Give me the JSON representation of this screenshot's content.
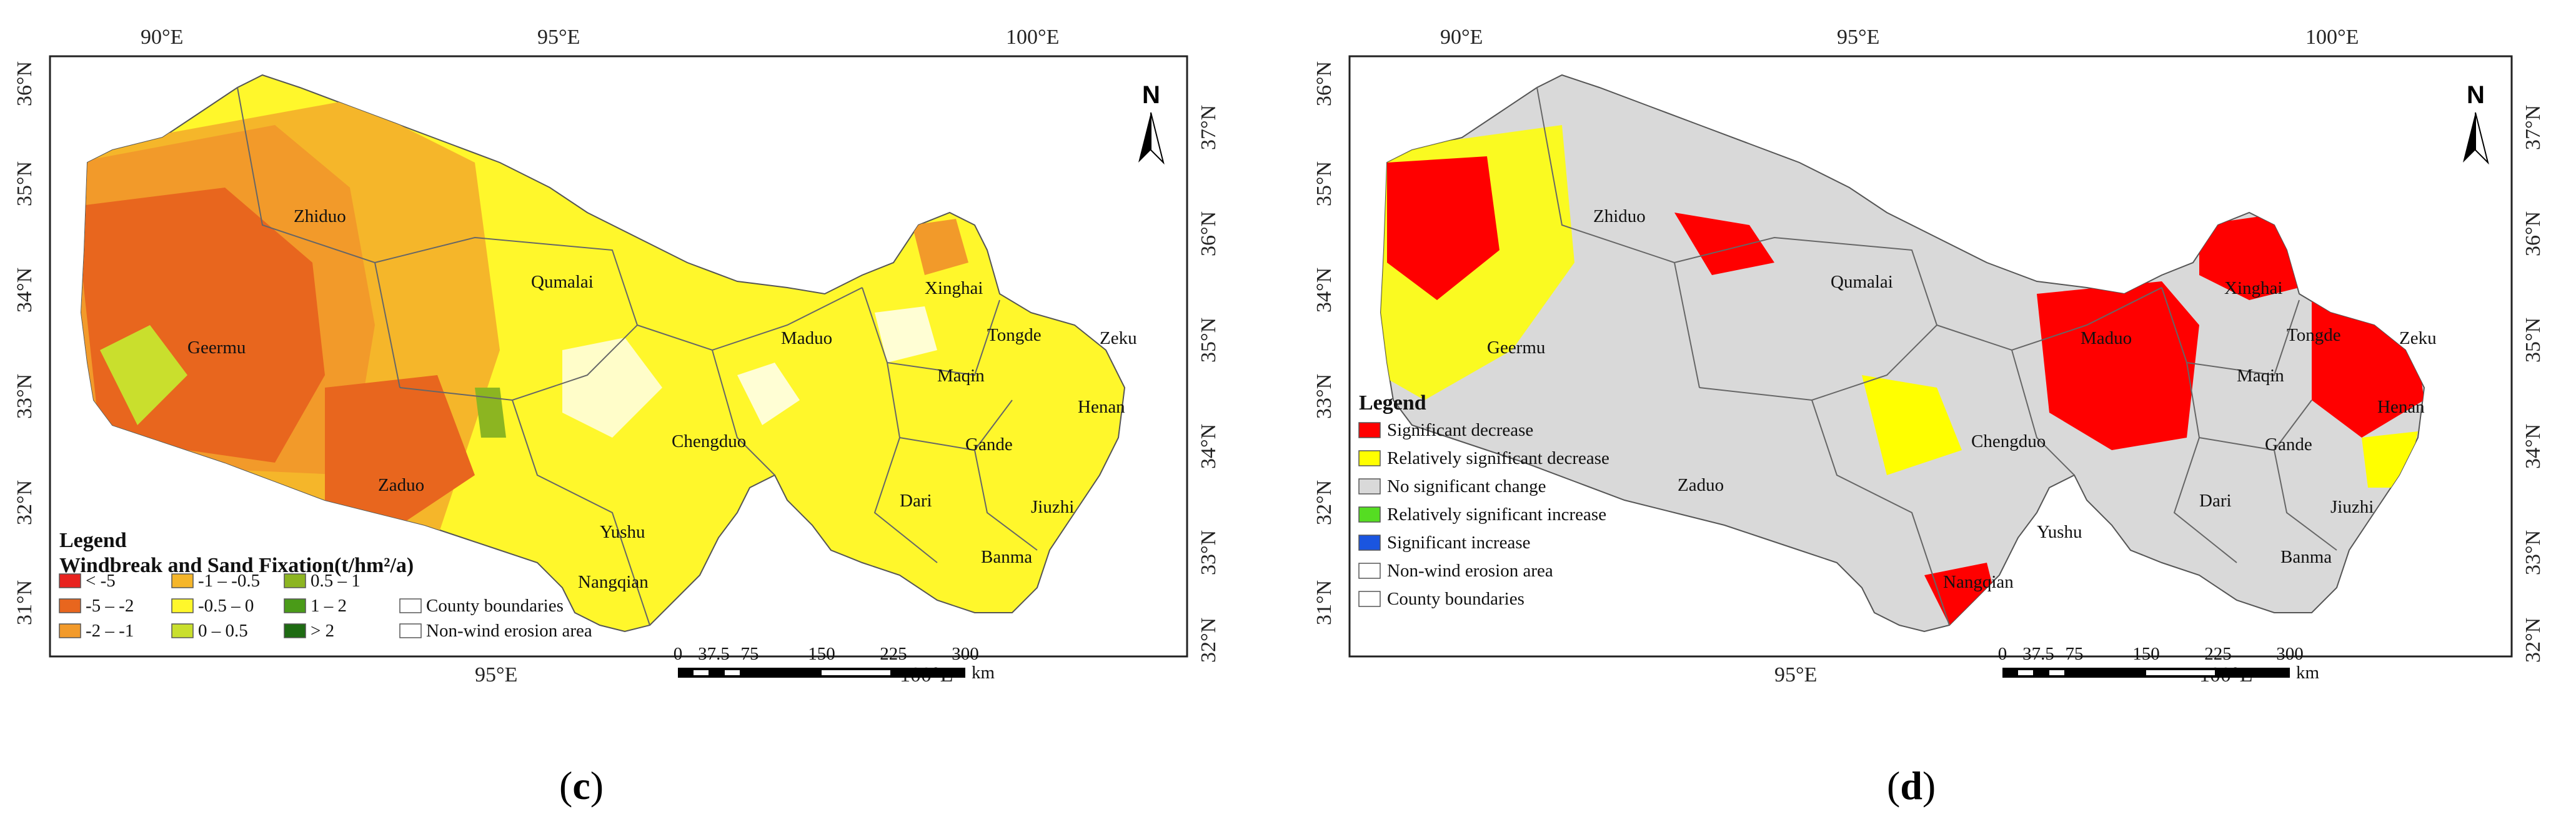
{
  "panel_c": {
    "caption_open": "(",
    "caption_letter": "c",
    "caption_close": ")",
    "top_lon": [
      "90°E",
      "95°E",
      "100°E"
    ],
    "bottom_lon": [
      "95°E",
      "100°E"
    ],
    "left_lat": [
      "36°N",
      "35°N",
      "34°N",
      "33°N",
      "32°N",
      "31°N"
    ],
    "right_lat": [
      "37°N",
      "36°N",
      "35°N",
      "34°N",
      "33°N",
      "32°N"
    ],
    "north_label": "N",
    "counties": [
      "Zhiduo",
      "Qumalai",
      "Geermu",
      "Maduo",
      "Xinghai",
      "Tongde",
      "Zeku",
      "Maqin",
      "Henan",
      "Chengduo",
      "Gande",
      "Zaduo",
      "Dari",
      "Jiuzhi",
      "Yushu",
      "Banma",
      "Nangqian"
    ],
    "legend": {
      "title": "Legend",
      "subtitle": "Windbreak and Sand Fixation(t/hm²/a)",
      "items": [
        {
          "label": "< -5",
          "color": "#e8231f"
        },
        {
          "label": "-1 – -0.5",
          "color": "#f5b62a"
        },
        {
          "label": "0.5 – 1",
          "color": "#8cb521"
        },
        {
          "label": "-5 – -2",
          "color": "#e8661e"
        },
        {
          "label": "-0.5 – 0",
          "color": "#fff72b"
        },
        {
          "label": "1 – 2",
          "color": "#4a9b18"
        },
        {
          "label": "-2 – -1",
          "color": "#f29a2a"
        },
        {
          "label": "0 – 0.5",
          "color": "#c9df2d"
        },
        {
          "label": "> 2",
          "color": "#1e6b12"
        },
        {
          "label": "County boundaries",
          "color": "#ffffff"
        },
        {
          "label": "Non-wind erosion area",
          "color": "#ffffff"
        }
      ]
    },
    "scale": {
      "ticks": [
        "0",
        "37.5",
        "75",
        "150",
        "225",
        "300"
      ],
      "unit": "km"
    }
  },
  "panel_d": {
    "caption_open": "(",
    "caption_letter": "d",
    "caption_close": ")",
    "top_lon": [
      "90°E",
      "95°E",
      "100°E"
    ],
    "bottom_lon": [
      "95°E",
      "100°E"
    ],
    "left_lat": [
      "36°N",
      "35°N",
      "34°N",
      "33°N",
      "32°N",
      "31°N"
    ],
    "right_lat": [
      "37°N",
      "36°N",
      "35°N",
      "34°N",
      "33°N",
      "32°N"
    ],
    "north_label": "N",
    "counties": [
      "Zhiduo",
      "Qumalai",
      "Geermu",
      "Maduo",
      "Xinghai",
      "Tongde",
      "Zeku",
      "Maqin",
      "Henan",
      "Chengduo",
      "Gande",
      "Zaduo",
      "Dari",
      "Jiuzhi",
      "Yushu",
      "Banma",
      "Nangqian"
    ],
    "legend": {
      "title": "Legend",
      "items": [
        {
          "label": "Significant decrease",
          "color": "#ff0000"
        },
        {
          "label": "Relatively significant decrease",
          "color": "#ffff00"
        },
        {
          "label": "No significant change",
          "color": "#d9d9d9"
        },
        {
          "label": "Relatively significant increase",
          "color": "#55dd22"
        },
        {
          "label": "Significant increase",
          "color": "#1a55e0"
        },
        {
          "label": "Non-wind erosion area",
          "color": "#ffffff"
        },
        {
          "label": "County boundaries",
          "color": "#ffffff"
        }
      ]
    },
    "scale": {
      "ticks": [
        "0",
        "37.5",
        "75",
        "150",
        "225",
        "300"
      ],
      "unit": "km"
    }
  }
}
